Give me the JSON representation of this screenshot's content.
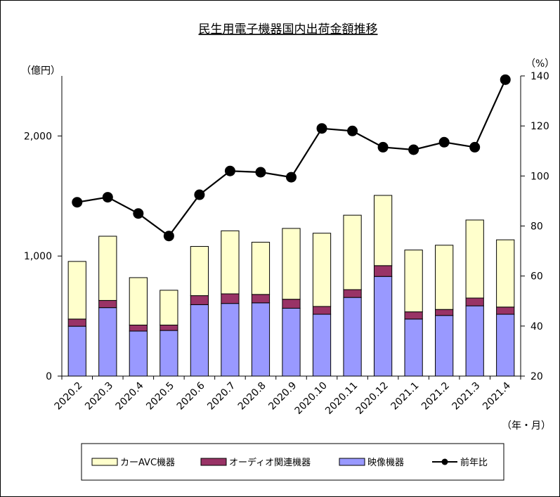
{
  "chart_data": {
    "type": "bar",
    "stacked": true,
    "title": "民生用電子機器国内出荷金額推移",
    "left_unit": "（億円）",
    "right_unit": "（%）",
    "x_unit": "（年・月）",
    "categories": [
      "2020.2",
      "2020.3",
      "2020.4",
      "2020.5",
      "2020.6",
      "2020.7",
      "2020.8",
      "2020.9",
      "2020.10",
      "2020.11",
      "2020.12",
      "2021.1",
      "2021.2",
      "2021.3",
      "2021.4"
    ],
    "ylim": [
      0,
      2500
    ],
    "yticks": [
      0,
      1000,
      2000
    ],
    "ytick_labels": [
      "0",
      "1,000",
      "2,000"
    ],
    "y2lim": [
      20,
      140
    ],
    "y2ticks": [
      20,
      40,
      60,
      80,
      100,
      120,
      140
    ],
    "series": [
      {
        "name": "映像機器",
        "color": "#9999ff",
        "values": [
          415,
          570,
          375,
          380,
          595,
          605,
          610,
          565,
          515,
          655,
          830,
          475,
          505,
          585,
          515
        ]
      },
      {
        "name": "オーディオ関連機器",
        "color": "#993366",
        "values": [
          60,
          60,
          50,
          45,
          75,
          80,
          70,
          75,
          65,
          65,
          90,
          60,
          50,
          65,
          60
        ]
      },
      {
        "name": "カーAVC機器",
        "color": "#ffffcc",
        "values": [
          480,
          535,
          395,
          290,
          410,
          525,
          435,
          590,
          610,
          620,
          585,
          515,
          535,
          650,
          560
        ]
      }
    ],
    "line": {
      "name": "前年比",
      "color": "#000000",
      "values": [
        89.5,
        91.5,
        85,
        76,
        92.5,
        102,
        101.5,
        99.5,
        119,
        118,
        111.5,
        110.5,
        113.5,
        111.5,
        138.5
      ]
    },
    "legend": [
      {
        "label": "カーAVC機器",
        "kind": "bar",
        "color": "#ffffcc"
      },
      {
        "label": "オーディオ関連機器",
        "kind": "bar",
        "color": "#993366"
      },
      {
        "label": "映像機器",
        "kind": "bar",
        "color": "#9999ff"
      },
      {
        "label": "前年比",
        "kind": "line",
        "color": "#000000"
      }
    ],
    "legend_position": "bottom",
    "grid": false
  }
}
